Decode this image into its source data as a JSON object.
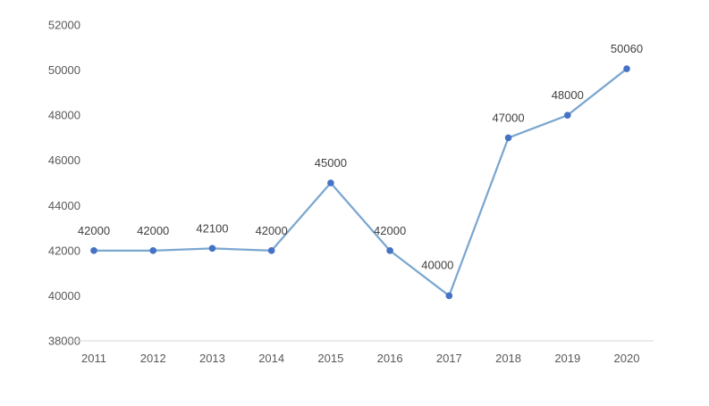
{
  "chart_data": {
    "type": "line",
    "title": "",
    "xlabel": "",
    "ylabel": "",
    "categories": [
      "2011",
      "2012",
      "2013",
      "2014",
      "2015",
      "2016",
      "2017",
      "2018",
      "2019",
      "2020"
    ],
    "series": [
      {
        "values": [
          42000,
          42000,
          42100,
          42000,
          45000,
          42000,
          40000,
          47000,
          48000,
          50060
        ],
        "data_labels": [
          "42000",
          "42000",
          "42100",
          "42000",
          "45000",
          "42000",
          "40000",
          "47000",
          "48000",
          "50060"
        ]
      }
    ],
    "ylim": [
      38000,
      52000
    ],
    "yticks": [
      "38000",
      "40000",
      "42000",
      "44000",
      "46000",
      "48000",
      "50000",
      "52000"
    ],
    "grid": false,
    "legend": "none",
    "colors": {
      "line": "#7BA7CF",
      "marker": "#4472C4",
      "axis": "#D9D9D9"
    }
  }
}
